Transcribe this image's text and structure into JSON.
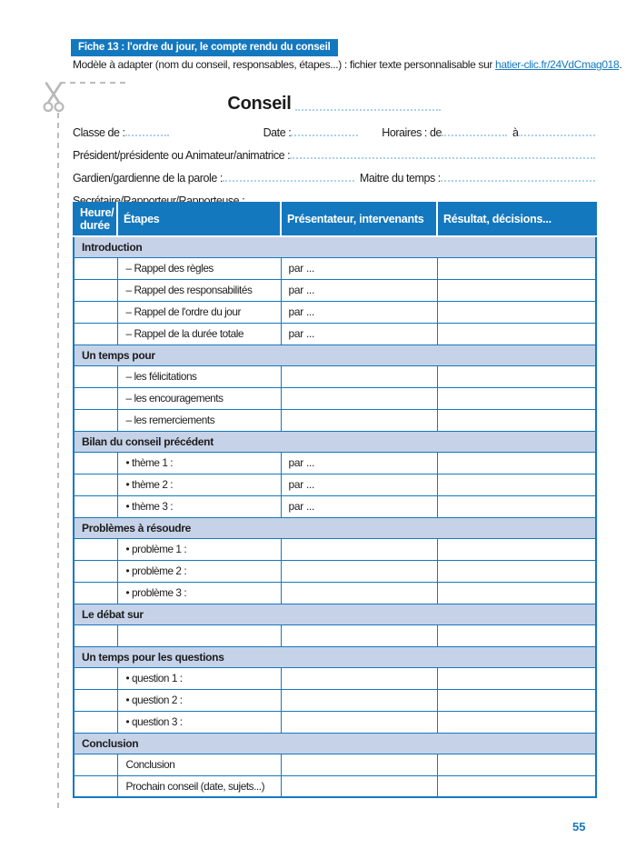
{
  "colors": {
    "accent_blue": "#1478bf",
    "section_bg": "#c6d2e8",
    "dotted_line_blue": "#a9d2ec",
    "cut_line_gray": "#bcbcbc",
    "link_blue": "#1478bf"
  },
  "icons": {
    "scissors": "scissors-cut-icon"
  },
  "fiche": {
    "title": "Fiche 13 : l'ordre du jour, le compte rendu du conseil"
  },
  "intro": {
    "text": "Modèle à adapter (nom du conseil, responsables, étapes...) : fichier texte personnalisable sur ",
    "link": "hatier-clic.fr/24VdCmag018",
    "suffix": "."
  },
  "form": {
    "title": "Conseil",
    "classe_label": "Classe de :",
    "date_label": "Date :",
    "horaires_label": "Horaires : de",
    "horaires_a_label": "à",
    "president_label": "Président/présidente ou Animateur/animatrice :",
    "gardien_label": "Gardien/gardienne de la parole :",
    "maitre_label": "Maitre du temps :",
    "secretaire_label": "Secrétaire/Rapporteur/Rapporteuse :"
  },
  "table": {
    "headers": [
      "Heure/\ndurée",
      "Étapes",
      "Présentateur, intervenants",
      "Résultat, décisions..."
    ],
    "rows": [
      {
        "type": "section",
        "label": "Introduction"
      },
      {
        "type": "item",
        "heure": "",
        "etape": "– Rappel des règles",
        "presentateur": "par ...",
        "resultat": ""
      },
      {
        "type": "item",
        "heure": "",
        "etape": "– Rappel des responsabilités",
        "presentateur": "par ...",
        "resultat": ""
      },
      {
        "type": "item",
        "heure": "",
        "etape": "– Rappel de l'ordre du jour",
        "presentateur": "par ...",
        "resultat": ""
      },
      {
        "type": "item",
        "heure": "",
        "etape": "– Rappel de la durée totale",
        "presentateur": "par ...",
        "resultat": ""
      },
      {
        "type": "section",
        "label": "Un temps pour"
      },
      {
        "type": "item",
        "heure": "",
        "etape": "– les félicitations",
        "presentateur": "",
        "resultat": ""
      },
      {
        "type": "item",
        "heure": "",
        "etape": "– les encouragements",
        "presentateur": "",
        "resultat": ""
      },
      {
        "type": "item",
        "heure": "",
        "etape": "– les remerciements",
        "presentateur": "",
        "resultat": ""
      },
      {
        "type": "section",
        "label": "Bilan du conseil précédent"
      },
      {
        "type": "item",
        "heure": "",
        "etape": "• thème 1 :",
        "presentateur": "par ...",
        "resultat": ""
      },
      {
        "type": "item",
        "heure": "",
        "etape": "• thème 2 :",
        "presentateur": "par ...",
        "resultat": ""
      },
      {
        "type": "item",
        "heure": "",
        "etape": "• thème 3 :",
        "presentateur": "par ...",
        "resultat": ""
      },
      {
        "type": "section",
        "label": "Problèmes à résoudre"
      },
      {
        "type": "item",
        "heure": "",
        "etape": "• problème 1 :",
        "presentateur": "",
        "resultat": ""
      },
      {
        "type": "item",
        "heure": "",
        "etape": "• problème 2 :",
        "presentateur": "",
        "resultat": ""
      },
      {
        "type": "item",
        "heure": "",
        "etape": "• problème 3 :",
        "presentateur": "",
        "resultat": ""
      },
      {
        "type": "section",
        "label": "Le débat sur"
      },
      {
        "type": "item",
        "heure": "",
        "etape": "",
        "presentateur": "",
        "resultat": ""
      },
      {
        "type": "section",
        "label": "Un temps pour les questions"
      },
      {
        "type": "item",
        "heure": "",
        "etape": "• question 1 :",
        "presentateur": "",
        "resultat": ""
      },
      {
        "type": "item",
        "heure": "",
        "etape": "• question 2 :",
        "presentateur": "",
        "resultat": ""
      },
      {
        "type": "item",
        "heure": "",
        "etape": "• question 3 :",
        "presentateur": "",
        "resultat": ""
      },
      {
        "type": "section",
        "label": "Conclusion"
      },
      {
        "type": "item",
        "heure": "",
        "etape": "Conclusion",
        "presentateur": "",
        "resultat": ""
      },
      {
        "type": "item",
        "heure": "",
        "etape": "Prochain conseil (date, sujets...)",
        "presentateur": "",
        "resultat": ""
      }
    ]
  },
  "page": {
    "number": "55"
  }
}
